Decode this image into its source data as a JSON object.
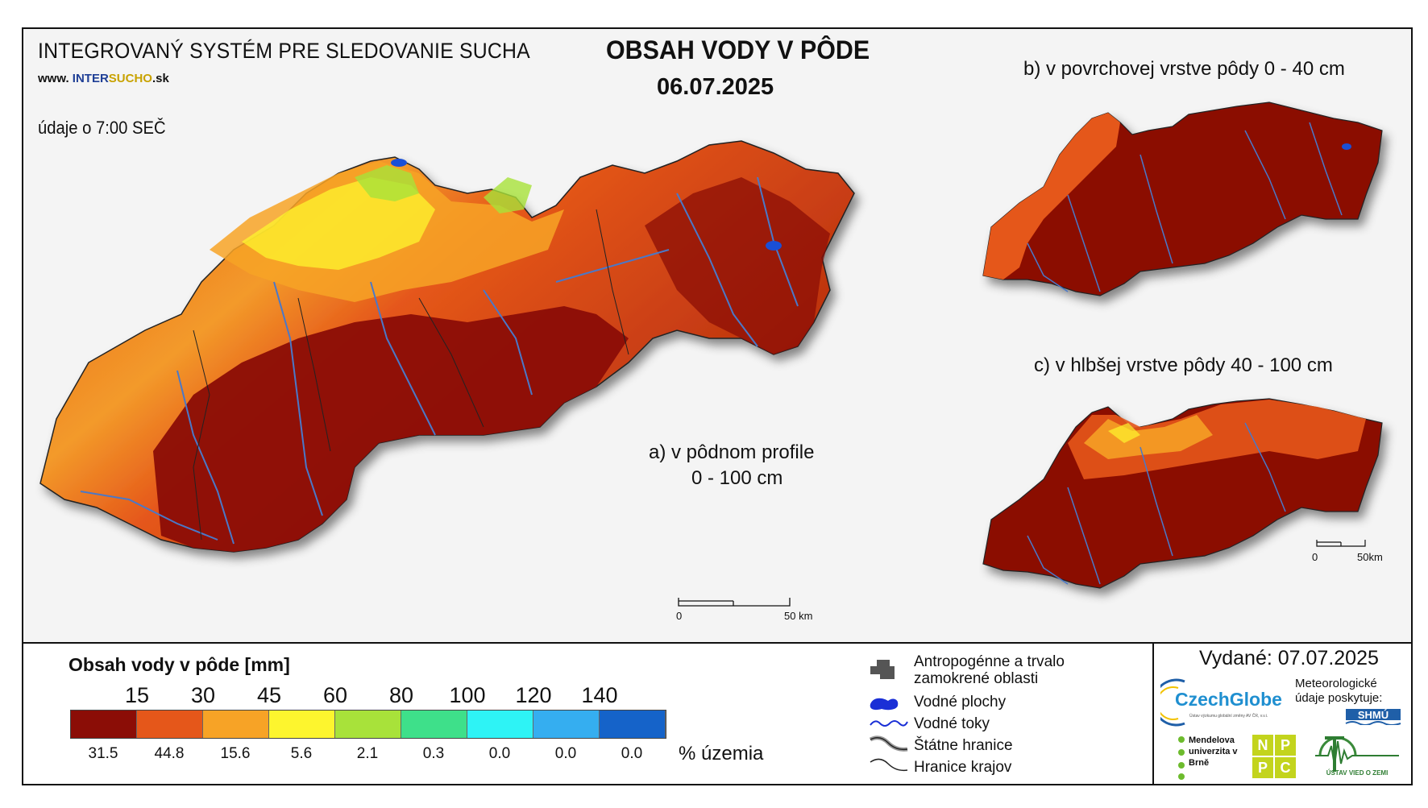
{
  "header": {
    "system_title": "INTEGROVANÝ SYSTÉM PRE SLEDOVANIE SUCHA",
    "website_prefix": "www. ",
    "website_part1": "INTER",
    "website_part2": "SUCHO",
    "website_suffix": ".sk",
    "data_time": "údaje o 7:00 SEČ",
    "main_title": "OBSAH VODY V PÔDE",
    "main_date": "06.07.2025"
  },
  "panels": {
    "a_line1": "a) v pôdnom profile",
    "a_line2": "0 - 100 cm",
    "b_label": "b) v povrchovej vrstve pôdy 0 - 40 cm",
    "c_label": "c) v hlbšej vrstve pôdy 40 - 100 cm"
  },
  "scalebars": {
    "main_start": "0",
    "main_end": "50 km",
    "small_start": "0",
    "small_end": "50km"
  },
  "legend": {
    "title": "Obsah vody v pôde  [mm]",
    "class_breaks": [
      "15",
      "30",
      "45",
      "60",
      "80",
      "100",
      "120",
      "140"
    ],
    "class_colors": [
      "#8b0d06",
      "#e5571a",
      "#f7a326",
      "#fdf52e",
      "#a8e23a",
      "#3ee08a",
      "#2ef3f5",
      "#35aef0",
      "#1563c9"
    ],
    "percent_values": [
      "31.5",
      "44.8",
      "15.6",
      "5.6",
      "2.1",
      "0.3",
      "0.0",
      "0.0",
      "0.0"
    ],
    "percent_unit": "% územia",
    "symbols": [
      {
        "icon": "anthropogenic-area-icon",
        "label_line1": "Antropogénne a trvalo",
        "label_line2": "zamokrené oblasti"
      },
      {
        "icon": "water-body-icon",
        "label_line1": "Vodné plochy",
        "label_line2": ""
      },
      {
        "icon": "river-icon",
        "label_line1": "Vodné toky",
        "label_line2": ""
      },
      {
        "icon": "state-border-icon",
        "label_line1": "Štátne hranice",
        "label_line2": ""
      },
      {
        "icon": "region-border-icon",
        "label_line1": "Hranice krajov",
        "label_line2": ""
      }
    ]
  },
  "credits": {
    "issued": "Vydané: 07.07.2025",
    "czechglobe": "CzechGlobe",
    "czechglobe_sub": "Ústav výzkumu globální změny AV ČR, v.v.i.",
    "meteo": "Meteorologické údaje poskytuje:",
    "shmu": "SHMÚ",
    "mendel": "Mendelova univerzita v Brně",
    "npc": [
      "N",
      "P",
      "P",
      "C"
    ],
    "uvz": "ÚSTAV VIED O ZEMI"
  },
  "colors": {
    "dark_red": "#8b0d06",
    "orange_red": "#e5571a",
    "orange": "#f7a326",
    "yellow": "#fdf52e",
    "river": "#4a78c8",
    "water": "#1a4fd6"
  }
}
